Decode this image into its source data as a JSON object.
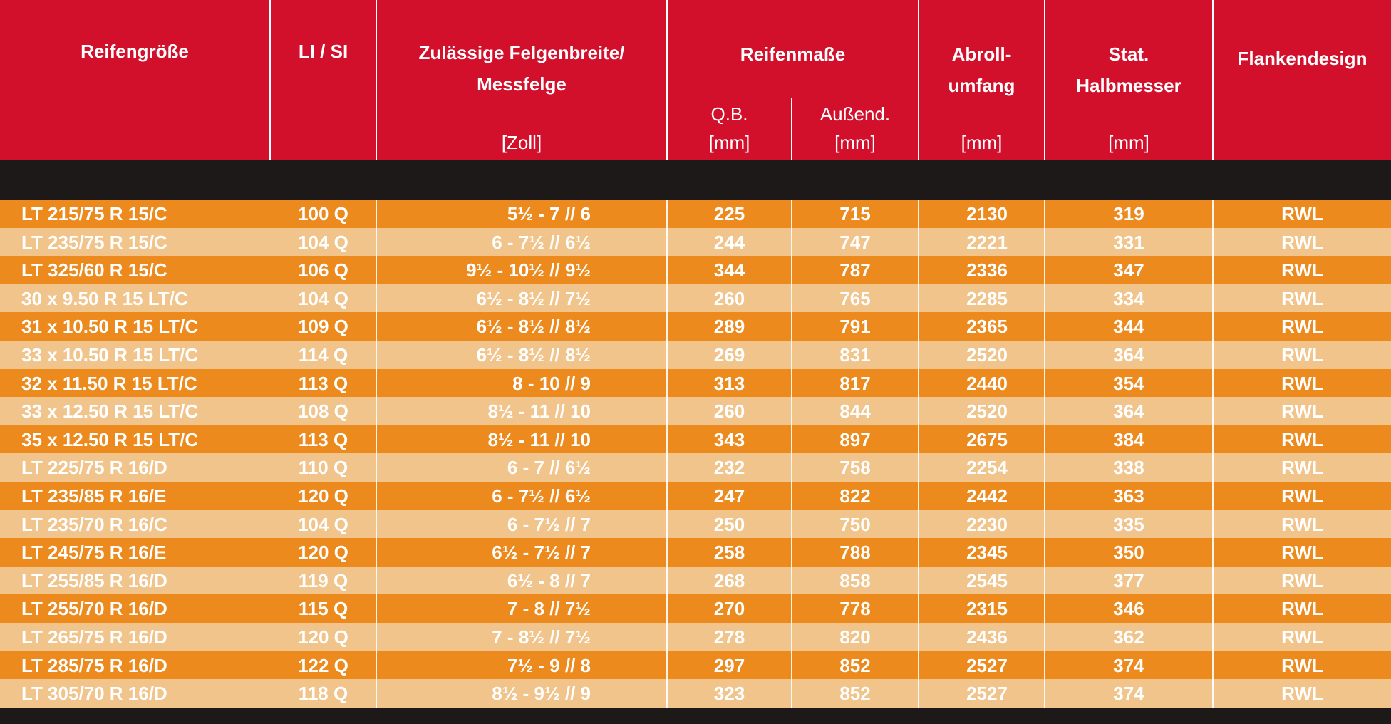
{
  "header": {
    "tire_size": "Reifengröße",
    "li_si": "LI / SI",
    "rim_width_line1": "Zulässige Felgenbreite/",
    "rim_width_line2": "Messfelge",
    "rim_width_unit": "[Zoll]",
    "tire_dims": "Reifenmaße",
    "qb_label": "Q.B.",
    "qb_unit": "[mm]",
    "outer_label": "Außend.",
    "outer_unit": "[mm]",
    "rolling_line1": "Abroll-",
    "rolling_line2": "umfang",
    "rolling_unit": "[mm]",
    "radius_line1": "Stat.",
    "radius_line2": "Halbmesser",
    "radius_unit": "[mm]",
    "sidewall": "Flankendesign"
  },
  "rows": [
    {
      "size": "LT 215/75 R 15/C",
      "lisi": "100 Q",
      "rim": "5½ - 7 // 6",
      "qb": "225",
      "outer": "715",
      "rolling": "2130",
      "radius": "319",
      "design": "RWL"
    },
    {
      "size": "LT 235/75 R 15/C",
      "lisi": "104 Q",
      "rim": "6 - 7½ // 6½",
      "qb": "244",
      "outer": "747",
      "rolling": "2221",
      "radius": "331",
      "design": "RWL"
    },
    {
      "size": "LT 325/60 R 15/C",
      "lisi": "106 Q",
      "rim": "9½ - 10½ // 9½",
      "qb": "344",
      "outer": "787",
      "rolling": "2336",
      "radius": "347",
      "design": "RWL"
    },
    {
      "size": "30 x 9.50 R 15 LT/C",
      "lisi": "104 Q",
      "rim": "6½ - 8½ // 7½",
      "qb": "260",
      "outer": "765",
      "rolling": "2285",
      "radius": "334",
      "design": "RWL"
    },
    {
      "size": "31 x 10.50 R 15 LT/C",
      "lisi": "109 Q",
      "rim": "6½ - 8½ // 8½",
      "qb": "289",
      "outer": "791",
      "rolling": "2365",
      "radius": "344",
      "design": "RWL"
    },
    {
      "size": "33 x 10.50 R 15 LT/C",
      "lisi": "114 Q",
      "rim": "6½ - 8½ // 8½",
      "qb": "269",
      "outer": "831",
      "rolling": "2520",
      "radius": "364",
      "design": "RWL"
    },
    {
      "size": "32 x 11.50 R 15 LT/C",
      "lisi": "113 Q",
      "rim": "8 - 10 // 9",
      "qb": "313",
      "outer": "817",
      "rolling": "2440",
      "radius": "354",
      "design": "RWL"
    },
    {
      "size": "33 x 12.50 R 15 LT/C",
      "lisi": "108 Q",
      "rim": "8½ - 11 // 10",
      "qb": "260",
      "outer": "844",
      "rolling": "2520",
      "radius": "364",
      "design": "RWL"
    },
    {
      "size": "35 x 12.50 R 15 LT/C",
      "lisi": "113 Q",
      "rim": "8½ - 11 // 10",
      "qb": "343",
      "outer": "897",
      "rolling": "2675",
      "radius": "384",
      "design": "RWL"
    },
    {
      "size": "LT 225/75 R 16/D",
      "lisi": "110 Q",
      "rim": "6 - 7 // 6½",
      "qb": "232",
      "outer": "758",
      "rolling": "2254",
      "radius": "338",
      "design": "RWL"
    },
    {
      "size": "LT 235/85 R 16/E",
      "lisi": "120 Q",
      "rim": "6 - 7½ // 6½",
      "qb": "247",
      "outer": "822",
      "rolling": "2442",
      "radius": "363",
      "design": "RWL"
    },
    {
      "size": "LT 235/70 R 16/C",
      "lisi": "104 Q",
      "rim": "6 - 7½ // 7",
      "qb": "250",
      "outer": "750",
      "rolling": "2230",
      "radius": "335",
      "design": "RWL"
    },
    {
      "size": "LT 245/75 R 16/E",
      "lisi": "120 Q",
      "rim": "6½ - 7½ // 7",
      "qb": "258",
      "outer": "788",
      "rolling": "2345",
      "radius": "350",
      "design": "RWL"
    },
    {
      "size": "LT 255/85 R 16/D",
      "lisi": "119 Q",
      "rim": "6½ - 8 // 7",
      "qb": "268",
      "outer": "858",
      "rolling": "2545",
      "radius": "377",
      "design": "RWL"
    },
    {
      "size": "LT 255/70 R 16/D",
      "lisi": "115 Q",
      "rim": "7 - 8 // 7½",
      "qb": "270",
      "outer": "778",
      "rolling": "2315",
      "radius": "346",
      "design": "RWL"
    },
    {
      "size": "LT 265/75 R 16/D",
      "lisi": "120 Q",
      "rim": "7 - 8½ // 7½",
      "qb": "278",
      "outer": "820",
      "rolling": "2436",
      "radius": "362",
      "design": "RWL"
    },
    {
      "size": "LT 285/75 R 16/D",
      "lisi": "122 Q",
      "rim": "7½ - 9 // 8",
      "qb": "297",
      "outer": "852",
      "rolling": "2527",
      "radius": "374",
      "design": "RWL"
    },
    {
      "size": "LT 305/70 R 16/D",
      "lisi": "118 Q",
      "rim": "8½ - 9½ // 9",
      "qb": "323",
      "outer": "852",
      "rolling": "2527",
      "radius": "374",
      "design": "RWL"
    }
  ],
  "colors": {
    "header_red": "#d3102c",
    "row_dark": "#ec8a1e",
    "row_light": "#f1c48c",
    "band": "#1d1918"
  }
}
